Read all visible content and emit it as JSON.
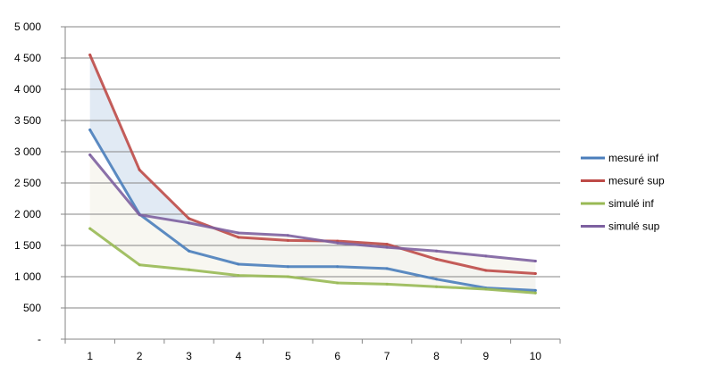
{
  "chart_data": {
    "type": "line",
    "title": "",
    "xlabel": "",
    "ylabel": "",
    "x": [
      1,
      2,
      3,
      4,
      5,
      6,
      7,
      8,
      9,
      10
    ],
    "ylim": [
      0,
      5000
    ],
    "y_ticks": [
      0,
      500,
      1000,
      1500,
      2000,
      2500,
      3000,
      3500,
      4000,
      4500,
      5000
    ],
    "y_tick_labels": [
      "-",
      "500",
      "1 000",
      "1 500",
      "2 000",
      "2 500",
      "3 000",
      "3 500",
      "4 000",
      "4 500",
      "5 000"
    ],
    "x_tick_labels": [
      "1",
      "2",
      "3",
      "4",
      "5",
      "6",
      "7",
      "8",
      "9",
      "10"
    ],
    "grid": true,
    "legend_position": "right",
    "series": [
      {
        "name": "mesuré inf",
        "color": "#4a7ebb",
        "values": [
          3350,
          2000,
          1410,
          1200,
          1160,
          1160,
          1130,
          960,
          820,
          780
        ]
      },
      {
        "name": "mesuré sup",
        "color": "#be4b48",
        "values": [
          4550,
          2710,
          1930,
          1630,
          1580,
          1570,
          1520,
          1280,
          1100,
          1050
        ]
      },
      {
        "name": "simulé inf",
        "color": "#98b954",
        "values": [
          1770,
          1190,
          1110,
          1020,
          1000,
          900,
          880,
          840,
          800,
          740
        ]
      },
      {
        "name": "simulé sup",
        "color": "#7d60a0",
        "values": [
          2950,
          1990,
          1860,
          1700,
          1660,
          1540,
          1470,
          1410,
          1330,
          1250
        ]
      }
    ],
    "bands": [
      {
        "between": [
          "mesuré inf",
          "mesuré sup"
        ],
        "color": "#dce6f2"
      },
      {
        "between": [
          "simulé inf",
          "simulé sup"
        ],
        "color": "#f7f6ee"
      }
    ]
  }
}
